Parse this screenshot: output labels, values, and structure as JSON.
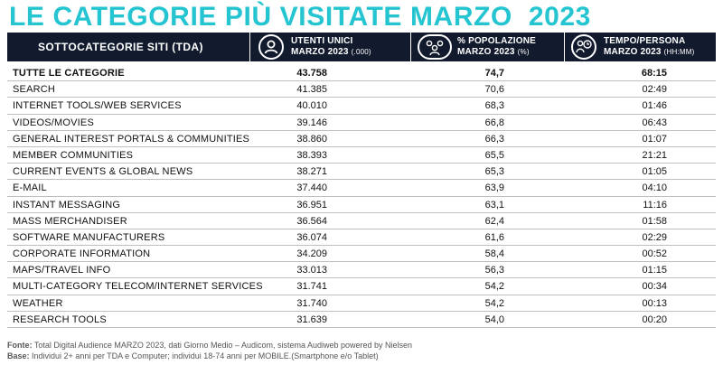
{
  "title": "LE CATEGORIE PIÙ VISITATE MARZO  2023",
  "header": {
    "category": "SOTTOCATEGORIE SITI  (TDA)",
    "users_line1": "UTENTI UNICI",
    "users_line2": "MARZO 2023",
    "users_unit": "(.000)",
    "pct_line1": "% POPOLAZIONE",
    "pct_line2": "MARZO 2023",
    "pct_unit": "(%)",
    "time_line1": "TEMPO/PERSONA",
    "time_line2": "MARZO 2023",
    "time_unit": "(HH:MM)"
  },
  "rows": [
    {
      "name": "TUTTE LE CATEGORIE",
      "users": "43.758",
      "pct": "74,7",
      "time": "68:15"
    },
    {
      "name": "SEARCH",
      "users": "41.385",
      "pct": "70,6",
      "time": "02:49"
    },
    {
      "name": "INTERNET TOOLS/WEB SERVICES",
      "users": "40.010",
      "pct": "68,3",
      "time": "01:46"
    },
    {
      "name": "VIDEOS/MOVIES",
      "users": "39.146",
      "pct": "66,8",
      "time": "06:43"
    },
    {
      "name": "GENERAL INTEREST PORTALS & COMMUNITIES",
      "users": "38.860",
      "pct": "66,3",
      "time": "01:07"
    },
    {
      "name": "MEMBER COMMUNITIES",
      "users": "38.393",
      "pct": "65,5",
      "time": "21:21"
    },
    {
      "name": "CURRENT EVENTS & GLOBAL NEWS",
      "users": "38.271",
      "pct": "65,3",
      "time": "01:05"
    },
    {
      "name": "E-MAIL",
      "users": "37.440",
      "pct": "63,9",
      "time": "04:10"
    },
    {
      "name": "INSTANT MESSAGING",
      "users": "36.951",
      "pct": "63,1",
      "time": "11:16"
    },
    {
      "name": "MASS MERCHANDISER",
      "users": "36.564",
      "pct": "62,4",
      "time": "01:58"
    },
    {
      "name": "SOFTWARE MANUFACTURERS",
      "users": "36.074",
      "pct": "61,6",
      "time": "02:29"
    },
    {
      "name": "CORPORATE INFORMATION",
      "users": "34.209",
      "pct": "58,4",
      "time": "00:52"
    },
    {
      "name": "MAPS/TRAVEL INFO",
      "users": "33.013",
      "pct": "56,3",
      "time": "01:15"
    },
    {
      "name": "MULTI-CATEGORY TELECOM/INTERNET SERVICES",
      "users": "31.741",
      "pct": "54,2",
      "time": "00:34"
    },
    {
      "name": "WEATHER",
      "users": "31.740",
      "pct": "54,2",
      "time": "00:13"
    },
    {
      "name": "RESEARCH TOOLS",
      "users": "31.639",
      "pct": "54,0",
      "time": "00:20"
    }
  ],
  "footer": {
    "source_label": "Fonte:",
    "source_text": "Total Digital Audience MARZO 2023, dati Giorno Medio – Audicom, sistema Audiweb powered by Nielsen",
    "base_label": "Base:",
    "base_text": "Individui 2+ anni per TDA e Computer; individui 18-74 anni per MOBILE.(Smartphone e/o Tablet)"
  },
  "colors": {
    "title": "#25c4d1",
    "header_bg": "#121a2e"
  },
  "icons": [
    "user-icon",
    "population-icon",
    "person-clock-icon"
  ]
}
